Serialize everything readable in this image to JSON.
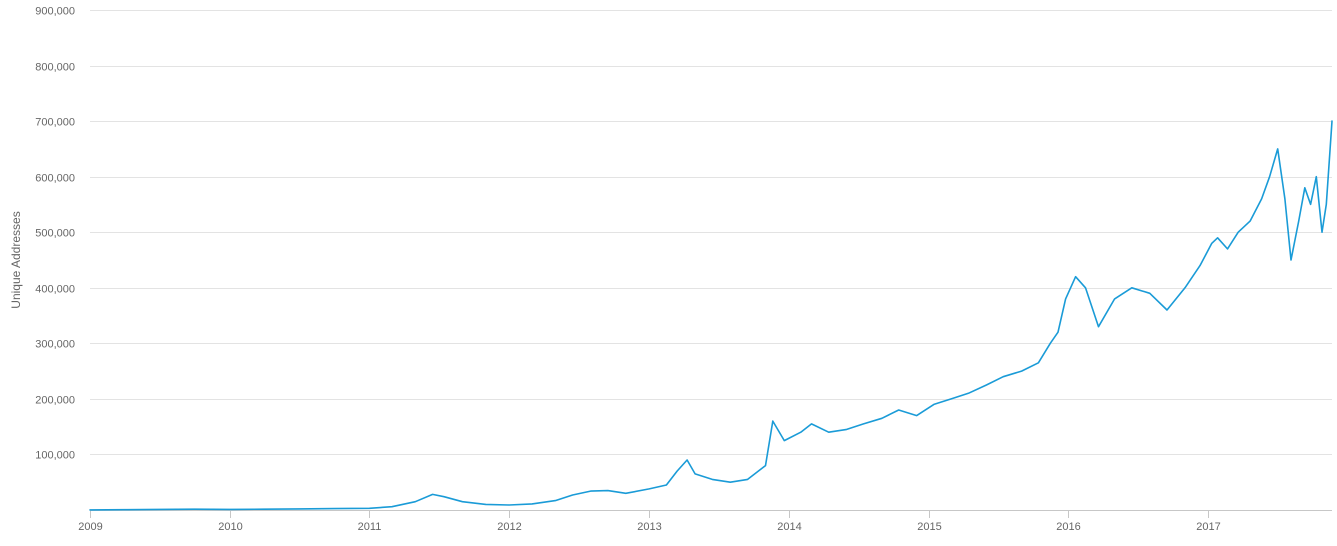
{
  "chart_data": {
    "type": "line",
    "title": "",
    "xlabel": "",
    "ylabel": "Unique Addresses",
    "xlim": [
      "2009-01-01",
      "2017-11-20"
    ],
    "ylim": [
      0,
      900000
    ],
    "x_ticks": [
      "2009",
      "2010",
      "2011",
      "2012",
      "2013",
      "2014",
      "2015",
      "2016",
      "2017"
    ],
    "y_ticks": [
      "100,000",
      "200,000",
      "300,000",
      "400,000",
      "500,000",
      "600,000",
      "700,000",
      "800,000",
      "900,000"
    ],
    "grid": true,
    "legend": "none",
    "color": "#1a9bd7",
    "series": [
      {
        "x": [
          "2009-01-01",
          "2009-04-01",
          "2009-07-01",
          "2009-10-01",
          "2010-01-01",
          "2010-04-01",
          "2010-07-01",
          "2010-10-01",
          "2011-01-01",
          "2011-03-01",
          "2011-05-01",
          "2011-06-15",
          "2011-07-15",
          "2011-09-01",
          "2011-11-01",
          "2012-01-01",
          "2012-03-01",
          "2012-05-01",
          "2012-06-15",
          "2012-08-01",
          "2012-09-15",
          "2012-11-01",
          "2013-01-01",
          "2013-02-15",
          "2013-03-15",
          "2013-04-10",
          "2013-05-01",
          "2013-06-15",
          "2013-08-01",
          "2013-09-15",
          "2013-11-01",
          "2013-11-20",
          "2013-12-20",
          "2014-02-01",
          "2014-03-01",
          "2014-04-15",
          "2014-06-01",
          "2014-07-15",
          "2014-09-01",
          "2014-10-15",
          "2014-12-01",
          "2015-01-15",
          "2015-03-01",
          "2015-04-15",
          "2015-06-01",
          "2015-07-15",
          "2015-09-01",
          "2015-10-15",
          "2015-11-15",
          "2015-12-05",
          "2015-12-25",
          "2016-01-20",
          "2016-02-15",
          "2016-03-20",
          "2016-05-01",
          "2016-06-15",
          "2016-08-01",
          "2016-09-15",
          "2016-11-01",
          "2016-12-10",
          "2017-01-10",
          "2017-01-25",
          "2017-02-20",
          "2017-03-20",
          "2017-04-20",
          "2017-05-20",
          "2017-06-10",
          "2017-07-01",
          "2017-07-20",
          "2017-08-05",
          "2017-08-25",
          "2017-09-10",
          "2017-09-25",
          "2017-10-10",
          "2017-10-25",
          "2017-11-05",
          "2017-11-15",
          "2017-11-20"
        ],
        "y": [
          100,
          500,
          1000,
          1500,
          1000,
          1500,
          2000,
          2500,
          3000,
          6000,
          15000,
          28000,
          24000,
          15000,
          10000,
          9000,
          11000,
          17000,
          27000,
          34000,
          35000,
          30000,
          38000,
          45000,
          70000,
          90000,
          65000,
          55000,
          50000,
          55000,
          80000,
          160000,
          125000,
          140000,
          155000,
          140000,
          145000,
          155000,
          165000,
          180000,
          170000,
          190000,
          200000,
          210000,
          225000,
          240000,
          250000,
          265000,
          300000,
          320000,
          380000,
          420000,
          400000,
          330000,
          380000,
          400000,
          390000,
          360000,
          400000,
          440000,
          480000,
          490000,
          470000,
          500000,
          520000,
          560000,
          600000,
          650000,
          560000,
          450000,
          520000,
          580000,
          550000,
          600000,
          500000,
          550000,
          650000,
          700000
        ]
      }
    ]
  }
}
